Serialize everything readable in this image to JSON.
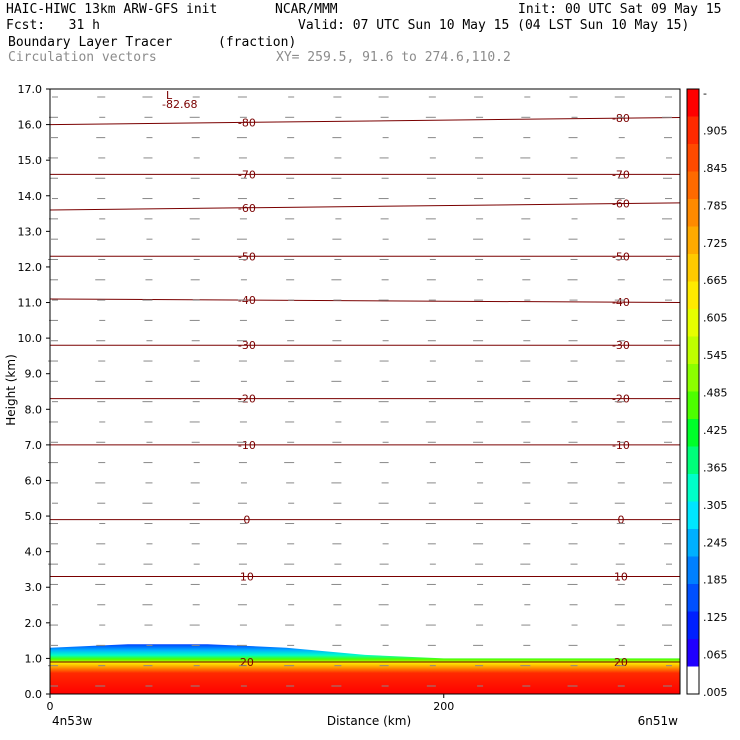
{
  "header": {
    "model": "HAIC-HIWC 13km ARW-GFS init",
    "org": "NCAR/MMM",
    "init": "Init: 00 UTC Sat 09 May 15",
    "fcst": "Fcst:   31 h",
    "valid": "Valid: 07 UTC Sun 10 May 15 (04 LST Sun 10 May 15)",
    "field": "Boundary Layer Tracer",
    "units": "(fraction)",
    "vectors": "Circulation vectors",
    "xy": "XY= 259.5, 91.6 to 274.6,110.2"
  },
  "chart_data": {
    "type": "heatmap",
    "xlabel": "Distance (km)",
    "ylabel": "Height (km)",
    "xlim": [
      0,
      320
    ],
    "ylim": [
      0,
      17
    ],
    "y_ticks": [
      "0.0",
      "1.0",
      "2.0",
      "3.0",
      "4.0",
      "5.0",
      "6.0",
      "7.0",
      "8.0",
      "9.0",
      "10.0",
      "11.0",
      "12.0",
      "13.0",
      "14.0",
      "15.0",
      "16.0",
      "17.0"
    ],
    "x_ticks": [
      "0",
      "200"
    ],
    "x_end_labels": {
      "left": "4n53w",
      "right": "6n51w"
    },
    "min_label": "L",
    "min_value": "-82.68",
    "colorbar": {
      "labels": [
        "-",
        ".905",
        ".845",
        ".785",
        ".725",
        ".665",
        ".605",
        ".545",
        ".485",
        ".425",
        ".365",
        ".305",
        ".245",
        ".185",
        ".125",
        ".065",
        ".005"
      ],
      "colors": [
        "#ff0000",
        "#ff2a00",
        "#ff4a00",
        "#ff6a00",
        "#ff8a00",
        "#ffaa00",
        "#ffca00",
        "#ffea00",
        "#e6ff00",
        "#bfff00",
        "#8cff00",
        "#4dff00",
        "#00ff2a",
        "#00ff7a",
        "#00ffc8",
        "#00e6ff",
        "#00b0ff",
        "#0080ff",
        "#0050ff",
        "#0020ff",
        "#2000ff",
        "#ffffff"
      ]
    },
    "temperature_contours": [
      {
        "label": "-80",
        "heights_km": [
          16.0,
          16.2
        ]
      },
      {
        "label": "-70",
        "heights_km": [
          14.6,
          14.6
        ]
      },
      {
        "label": "-60",
        "heights_km": [
          13.6,
          13.8
        ]
      },
      {
        "label": "-50",
        "heights_km": [
          12.3,
          12.3
        ]
      },
      {
        "label": "-40",
        "heights_km": [
          11.1,
          11.0
        ]
      },
      {
        "label": "-30",
        "heights_km": [
          9.8,
          9.8
        ]
      },
      {
        "label": "-20",
        "heights_km": [
          8.3,
          8.3
        ]
      },
      {
        "label": "-10",
        "heights_km": [
          7.0,
          7.0
        ]
      },
      {
        "label": "0",
        "heights_km": [
          4.9,
          4.9
        ]
      },
      {
        "label": "10",
        "heights_km": [
          3.3,
          3.3
        ]
      },
      {
        "label": "20",
        "heights_km": [
          0.9,
          0.9
        ]
      }
    ],
    "labeled_contour_positions_km": [
      100,
      290
    ],
    "boundary_layer_top_km": [
      1.3,
      1.4,
      1.4,
      1.3,
      1.1,
      1.0,
      1.0,
      1.0,
      1.0
    ]
  }
}
